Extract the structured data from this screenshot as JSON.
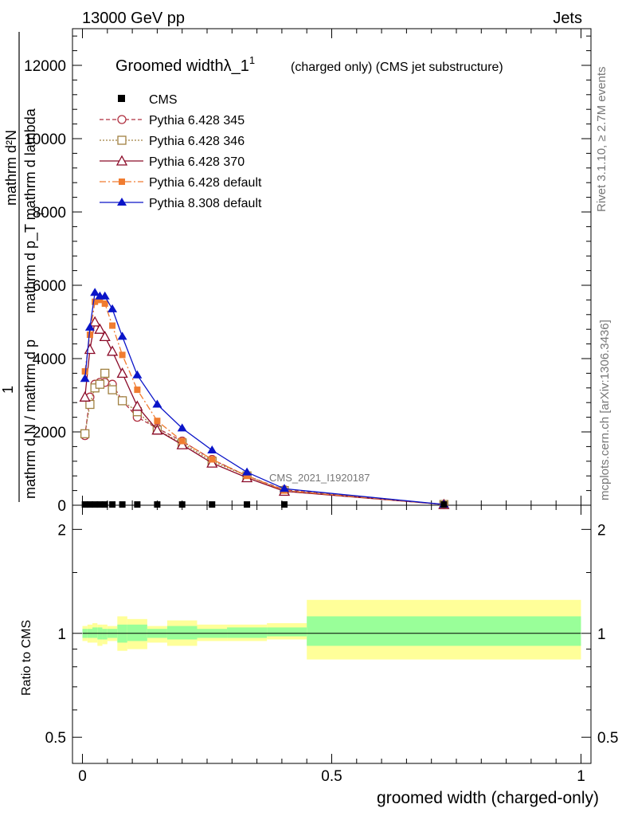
{
  "header": {
    "left": "13000 GeV pp",
    "right": "Jets"
  },
  "side_labels": {
    "rivet": "Rivet 3.1.10, ≥ 2.7M events",
    "mcplots": "mcplots.cern.ch [arXiv:1306.3436]"
  },
  "chart_data": [
    {
      "type": "line",
      "title": "Groomed widthλ_1",
      "title_sup": "1",
      "subtitle": "(charged only) (CMS jet substructure)",
      "watermark": "CMS_2021_I1920187",
      "ylabel": {
        "numerator": "mathrm d²N",
        "denominator": "mathrm d p_T mathrm d lambda",
        "prefix_one": "1",
        "prefix_mid": "mathrm d N / mathrm d p",
        "prefix_sub": "T"
      },
      "xlim": [
        -0.02,
        1.02
      ],
      "ylim": [
        0,
        13000
      ],
      "yticks": [
        0,
        2000,
        4000,
        6000,
        8000,
        10000,
        12000
      ],
      "ytick_labels": [
        "0",
        "2000",
        "4000",
        "6000",
        "8000",
        "10000",
        "12000"
      ],
      "legend_position": "top-left",
      "cms": {
        "name": "CMS",
        "x": [
          0.005,
          0.015,
          0.025,
          0.035,
          0.045,
          0.06,
          0.08,
          0.11,
          0.15,
          0.2,
          0.26,
          0.33,
          0.405,
          0.725
        ],
        "y": [
          20,
          20,
          20,
          20,
          20,
          20,
          20,
          20,
          20,
          20,
          20,
          20,
          20,
          20
        ]
      },
      "series": [
        {
          "name": "Pythia 6.428 345",
          "color": "#b03040",
          "dash": "5,3",
          "marker": "circle-open",
          "x": [
            0.005,
            0.015,
            0.025,
            0.035,
            0.045,
            0.06,
            0.08,
            0.11,
            0.15,
            0.2,
            0.26,
            0.33,
            0.405,
            0.725
          ],
          "y": [
            1900,
            2950,
            3300,
            3350,
            3350,
            3300,
            2850,
            2400,
            2100,
            1750,
            1250,
            800,
            420,
            20
          ]
        },
        {
          "name": "Pythia 6.428 346",
          "color": "#a08040",
          "dash": "2,2",
          "marker": "square-open",
          "x": [
            0.005,
            0.015,
            0.025,
            0.035,
            0.045,
            0.06,
            0.08,
            0.11,
            0.15,
            0.2,
            0.26,
            0.33,
            0.405,
            0.725
          ],
          "y": [
            1950,
            2750,
            3200,
            3300,
            3600,
            3150,
            2850,
            2550,
            2050,
            1700,
            1200,
            800,
            400,
            20
          ]
        },
        {
          "name": "Pythia 6.428 370",
          "color": "#8b0a28",
          "dash": "",
          "marker": "triangle-open",
          "x": [
            0.005,
            0.015,
            0.025,
            0.035,
            0.045,
            0.06,
            0.08,
            0.11,
            0.15,
            0.2,
            0.26,
            0.33,
            0.405,
            0.725
          ],
          "y": [
            2950,
            4250,
            5000,
            4800,
            4600,
            4200,
            3600,
            2700,
            2050,
            1650,
            1150,
            750,
            380,
            20
          ]
        },
        {
          "name": "Pythia 6.428 default",
          "color": "#f07c30",
          "dash": "8,3,2,3",
          "marker": "square-filled",
          "x": [
            0.005,
            0.015,
            0.025,
            0.035,
            0.045,
            0.06,
            0.08,
            0.11,
            0.15,
            0.2,
            0.26,
            0.33,
            0.405,
            0.725
          ],
          "y": [
            3650,
            4650,
            5550,
            5600,
            5500,
            4900,
            4100,
            3150,
            2300,
            1750,
            1250,
            800,
            400,
            20
          ]
        },
        {
          "name": "Pythia 8.308 default",
          "color": "#0a14c8",
          "dash": "",
          "marker": "triangle-filled",
          "x": [
            0.005,
            0.015,
            0.025,
            0.035,
            0.045,
            0.06,
            0.08,
            0.11,
            0.15,
            0.2,
            0.26,
            0.33,
            0.405,
            0.725
          ],
          "y": [
            3450,
            4850,
            5800,
            5700,
            5700,
            5350,
            4600,
            3550,
            2750,
            2100,
            1500,
            900,
            450,
            20
          ]
        }
      ]
    },
    {
      "type": "area",
      "ylabel": "Ratio to CMS",
      "xlabel": "groomed width (charged-only)",
      "scale": "log",
      "ylim": [
        0.42,
        2.35
      ],
      "yticks": [
        0.5,
        1,
        2
      ],
      "ytick_labels": [
        "0.5",
        "1",
        "2"
      ],
      "xticks": [
        0,
        0.5,
        1
      ],
      "xtick_labels": [
        "0",
        "0.5",
        "1"
      ],
      "bin_edges": [
        0.0,
        0.01,
        0.02,
        0.03,
        0.04,
        0.05,
        0.07,
        0.09,
        0.13,
        0.17,
        0.23,
        0.29,
        0.37,
        0.45,
        1.0
      ],
      "yellow_band": {
        "color": "#ffff99",
        "lower": [
          0.95,
          0.94,
          0.94,
          0.92,
          0.93,
          0.95,
          0.89,
          0.9,
          0.94,
          0.92,
          0.95,
          0.95,
          0.96,
          0.84
        ],
        "upper": [
          1.05,
          1.06,
          1.07,
          1.06,
          1.06,
          1.05,
          1.12,
          1.1,
          1.05,
          1.09,
          1.06,
          1.06,
          1.07,
          1.25
        ]
      },
      "green_band": {
        "color": "#99ff99",
        "lower": [
          0.97,
          0.97,
          0.97,
          0.96,
          0.96,
          0.97,
          0.94,
          0.95,
          0.97,
          0.96,
          0.97,
          0.97,
          0.98,
          0.92
        ],
        "upper": [
          1.03,
          1.03,
          1.04,
          1.04,
          1.03,
          1.03,
          1.06,
          1.06,
          1.03,
          1.05,
          1.03,
          1.04,
          1.04,
          1.12
        ]
      },
      "reference_line": 1
    }
  ]
}
